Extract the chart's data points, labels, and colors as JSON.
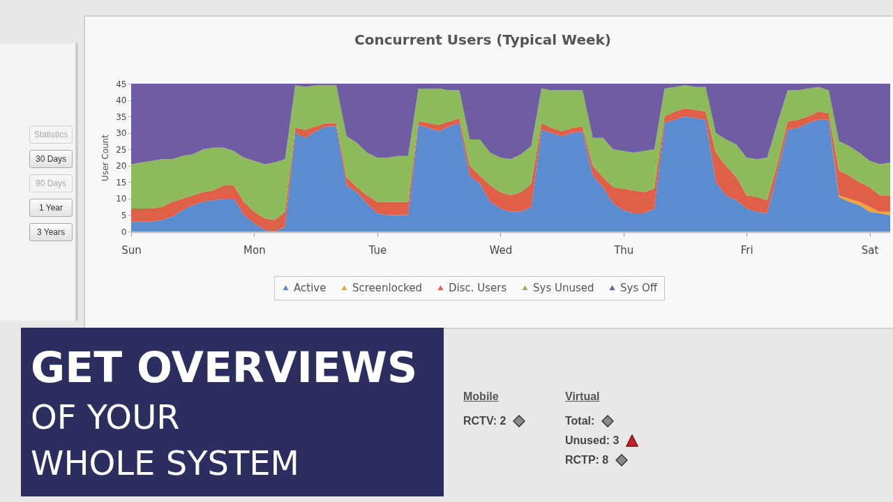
{
  "chart_data": [
    {
      "type": "area",
      "title": "Concurrent Users (Typical Week)",
      "ylabel": "User Count",
      "stacked": true,
      "legend": "bottom",
      "categories": [
        "Sun",
        null,
        null,
        null,
        null,
        null,
        null,
        null,
        null,
        null,
        null,
        null,
        "Mon",
        null,
        null,
        null,
        null,
        null,
        null,
        null,
        null,
        null,
        null,
        null,
        "Tue",
        null,
        null,
        null,
        null,
        null,
        null,
        null,
        null,
        null,
        null,
        null,
        "Wed",
        null,
        null,
        null,
        null,
        null,
        null,
        null,
        null,
        null,
        null,
        null,
        "Thu",
        null,
        null,
        null,
        null,
        null,
        null,
        null,
        null,
        null,
        null,
        null,
        "Fri",
        null,
        null,
        null,
        null,
        null,
        null,
        null,
        null,
        null,
        null,
        null,
        "Sat",
        null,
        null
      ],
      "ylim": [
        0,
        45
      ],
      "yticks": [
        0,
        5,
        10,
        15,
        20,
        25,
        30,
        35,
        40,
        45
      ],
      "series": [
        {
          "name": "Active",
          "color": "#5a8ccf",
          "values": [
            3,
            3,
            3,
            3.5,
            4.5,
            6.5,
            8,
            9,
            9.5,
            10,
            10,
            5,
            2.5,
            0.5,
            0,
            1.5,
            30,
            28.5,
            30.5,
            32,
            32,
            14,
            12,
            8.5,
            5.5,
            5,
            5,
            5,
            32.5,
            31.5,
            30.5,
            32,
            33,
            17,
            14.5,
            9,
            7,
            6,
            6,
            7.5,
            31,
            30,
            29,
            30,
            30.5,
            17,
            13.5,
            8.5,
            6.5,
            5.5,
            5.5,
            7,
            33,
            34,
            35,
            34.5,
            34,
            15,
            11,
            9.5,
            7,
            6,
            5.5,
            18,
            31,
            31.5,
            33,
            34,
            34,
            10.5,
            9,
            8,
            6,
            5.5,
            5
          ]
        },
        {
          "name": "Screenlocked",
          "color": "#f0a43a",
          "values": [
            null,
            null,
            null,
            null,
            null,
            null,
            null,
            null,
            null,
            null,
            null,
            null,
            null,
            null,
            null,
            null,
            null,
            null,
            null,
            null,
            null,
            null,
            null,
            null,
            null,
            null,
            null,
            null,
            null,
            null,
            null,
            null,
            null,
            null,
            null,
            null,
            null,
            null,
            null,
            null,
            null,
            null,
            null,
            null,
            null,
            null,
            null,
            null,
            null,
            null,
            null,
            null,
            null,
            null,
            null,
            null,
            null,
            null,
            null,
            null,
            null,
            null,
            null,
            null,
            null,
            null,
            null,
            null,
            0,
            0.5,
            1,
            1,
            1.5,
            0.5,
            1
          ]
        },
        {
          "name": "Disc. Users",
          "color": "#df5f48",
          "values": [
            4,
            4,
            4,
            4,
            4.5,
            3.5,
            3,
            3,
            3,
            4,
            4,
            4,
            3.5,
            3.5,
            3.5,
            4.5,
            1.5,
            2.5,
            1.5,
            1,
            1,
            2.5,
            1.5,
            2.5,
            3.5,
            4,
            4,
            4,
            1,
            1.5,
            2,
            1.5,
            1.5,
            3,
            2.5,
            5,
            5,
            5,
            6,
            7,
            2,
            1.5,
            1.5,
            1.5,
            1.5,
            3,
            3,
            5,
            6.5,
            7,
            6.5,
            6,
            2,
            2.5,
            2.5,
            2.5,
            2.5,
            9,
            9,
            7,
            4,
            4.5,
            4,
            2.5,
            2.5,
            2.5,
            2,
            2.5,
            2,
            7.5,
            7,
            6,
            6,
            5,
            5
          ]
        },
        {
          "name": "Sys Unused",
          "color": "#8dbb5c",
          "values": [
            13.5,
            14,
            14.5,
            14.5,
            13,
            13,
            12.5,
            13,
            13,
            11.5,
            10.5,
            13.5,
            15.5,
            16.5,
            17.5,
            16,
            13,
            13,
            12.5,
            11.5,
            11.5,
            12.5,
            13.5,
            13,
            13.5,
            13.5,
            14,
            14,
            10,
            10.5,
            11,
            9.5,
            8.5,
            8,
            11,
            10,
            10.5,
            11,
            11.5,
            11.5,
            10.5,
            11.5,
            12.5,
            11.5,
            11,
            8.5,
            12,
            11.5,
            11.5,
            11.5,
            12.5,
            12,
            8.5,
            7.5,
            7,
            7,
            7.5,
            6,
            8,
            10,
            11.5,
            11.5,
            13,
            12.5,
            9.5,
            9,
            8.5,
            7.5,
            7,
            9,
            9,
            9,
            8,
            9.5,
            10
          ]
        },
        {
          "name": "Sys Off",
          "color": "#6f5ca3",
          "values": [
            24.5,
            24,
            23.5,
            23,
            23,
            22,
            21.5,
            20,
            19.5,
            19.5,
            20.5,
            22.5,
            23.5,
            24.5,
            24,
            23,
            0.5,
            1,
            0.5,
            0.5,
            0.5,
            16,
            18,
            21,
            22.5,
            22.5,
            22,
            22,
            1.5,
            1.5,
            1.5,
            2,
            2,
            17,
            17,
            21,
            22.5,
            23,
            21.5,
            19,
            1.5,
            2,
            2,
            2,
            2,
            16.5,
            16.5,
            20,
            20.5,
            21,
            20.5,
            20,
            1.5,
            1,
            0.5,
            1,
            1,
            15,
            17,
            18.5,
            22.5,
            23,
            22.5,
            12,
            2,
            2,
            1.5,
            1,
            2,
            17.5,
            19,
            21,
            23.5,
            24.5,
            24
          ]
        }
      ]
    },
    {
      "type": "other",
      "annotations": [
        "Statistics",
        "30 Days",
        "90 Days",
        "1 Year",
        "3 Years"
      ]
    },
    {
      "type": "other",
      "annotations": [
        "GET OVERVIEWS",
        "OF YOUR",
        "WHOLE SYSTEM"
      ]
    },
    {
      "type": "other",
      "annotations": [
        "Mobile",
        "RCTV: 2"
      ]
    },
    {
      "type": "other",
      "annotations": [
        "Virtual",
        "Total:",
        "Unused: 3",
        "RCTP: 8"
      ]
    }
  ]
}
